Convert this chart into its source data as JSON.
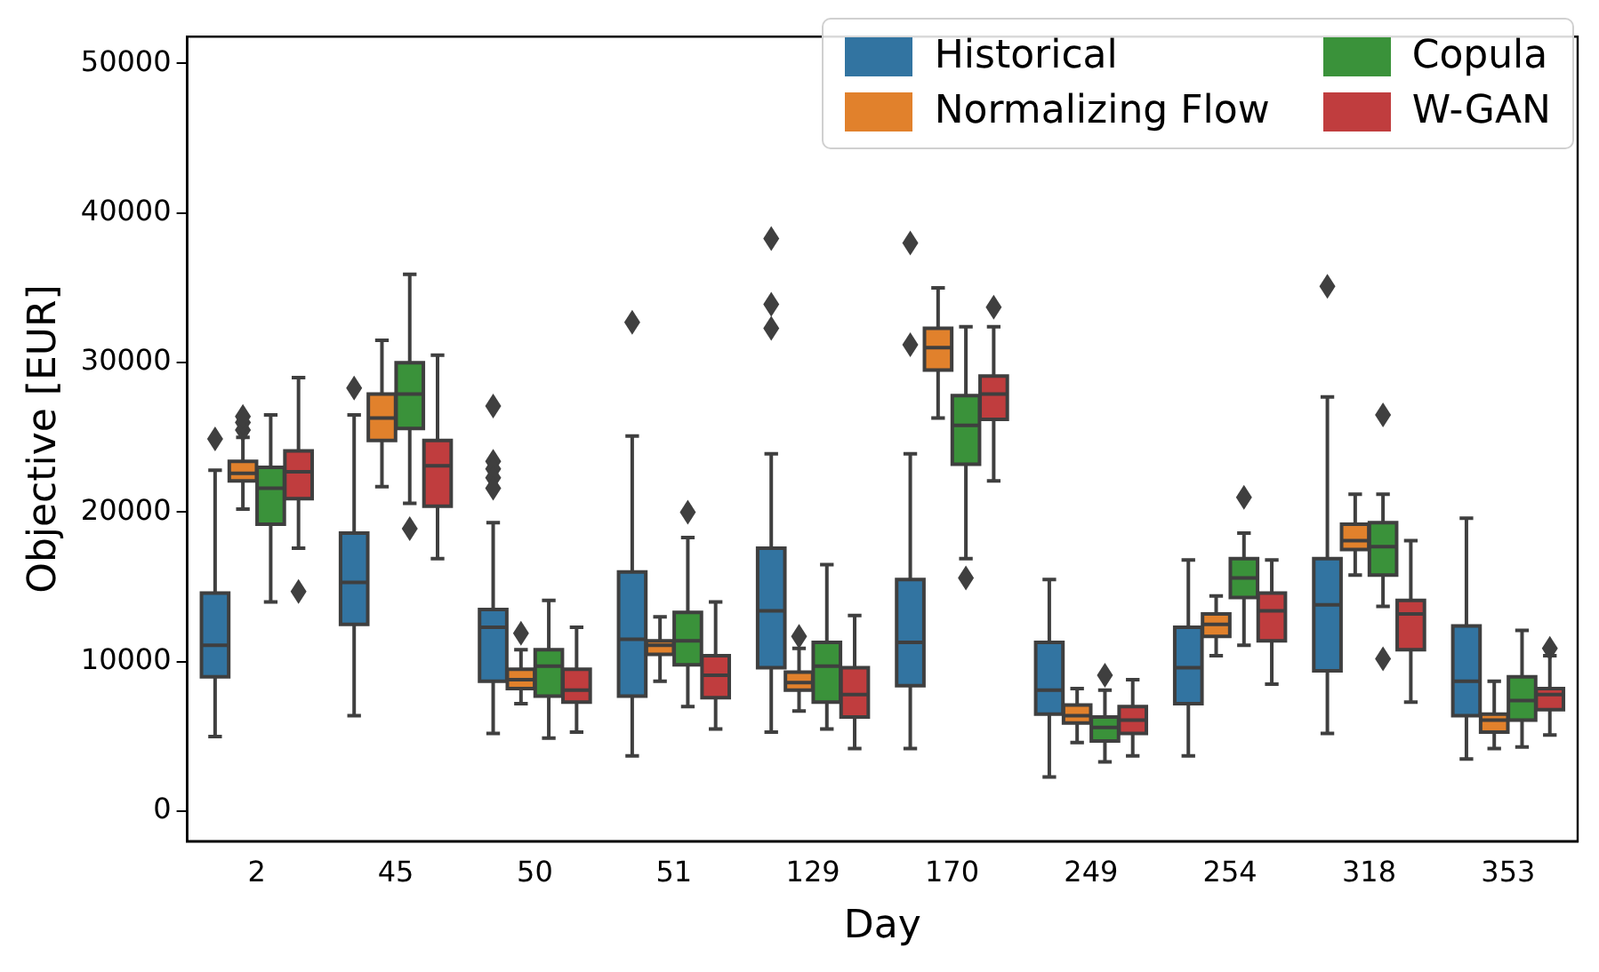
{
  "chart_data": {
    "type": "box",
    "xlabel": "Day",
    "ylabel": "Objective [EUR]",
    "categories": [
      "2",
      "45",
      "50",
      "51",
      "129",
      "170",
      "249",
      "254",
      "318",
      "353"
    ],
    "ylim": [
      -2000,
      51800
    ],
    "yticks": [
      0,
      10000,
      20000,
      30000,
      40000,
      50000
    ],
    "grid": false,
    "legend": "top right",
    "series": [
      {
        "name": "Historical",
        "color": "#3274a1",
        "boxes": [
          {
            "low": 5000,
            "q1": 9000,
            "median": 11100,
            "q3": 14600,
            "high": 22800,
            "outliers": [
              24900
            ]
          },
          {
            "low": 6400,
            "q1": 12500,
            "median": 15300,
            "q3": 18600,
            "high": 26500,
            "outliers": [
              28300
            ]
          },
          {
            "low": 5200,
            "q1": 8700,
            "median": 12300,
            "q3": 13500,
            "high": 19300,
            "outliers": [
              27100,
              23400,
              22900,
              22300,
              21600
            ]
          },
          {
            "low": 3700,
            "q1": 7700,
            "median": 11500,
            "q3": 16000,
            "high": 25100,
            "outliers": [
              32700
            ]
          },
          {
            "low": 5300,
            "q1": 9600,
            "median": 13400,
            "q3": 17600,
            "high": 23900,
            "outliers": [
              38300,
              33900,
              32300
            ]
          },
          {
            "low": 4200,
            "q1": 8400,
            "median": 11300,
            "q3": 15500,
            "high": 23900,
            "outliers": [
              38000,
              31200
            ]
          },
          {
            "low": 2300,
            "q1": 6500,
            "median": 8100,
            "q3": 11300,
            "high": 15500
          },
          {
            "low": 3700,
            "q1": 7200,
            "median": 9600,
            "q3": 12300,
            "high": 16800
          },
          {
            "low": 5200,
            "q1": 9400,
            "median": 13800,
            "q3": 16900,
            "high": 27700,
            "outliers": [
              35100
            ]
          },
          {
            "low": 3500,
            "q1": 6400,
            "median": 8700,
            "q3": 12400,
            "high": 19600
          }
        ]
      },
      {
        "name": "Normalizing Flow",
        "color": "#e1812c",
        "boxes": [
          {
            "low": 20200,
            "q1": 22100,
            "median": 22600,
            "q3": 23400,
            "high": 25000,
            "outliers": [
              25500,
              26000,
              26400
            ]
          },
          {
            "low": 21700,
            "q1": 24800,
            "median": 26300,
            "q3": 27900,
            "high": 31500
          },
          {
            "low": 7200,
            "q1": 8200,
            "median": 8800,
            "q3": 9500,
            "high": 10800,
            "outliers": [
              11900
            ]
          },
          {
            "low": 8700,
            "q1": 10500,
            "median": 11100,
            "q3": 11400,
            "high": 13000
          },
          {
            "low": 6700,
            "q1": 8100,
            "median": 8600,
            "q3": 9300,
            "high": 10900,
            "outliers": [
              11700
            ]
          },
          {
            "low": 26300,
            "q1": 29500,
            "median": 31000,
            "q3": 32300,
            "high": 35000
          },
          {
            "low": 4600,
            "q1": 5900,
            "median": 6400,
            "q3": 7100,
            "high": 8200
          },
          {
            "low": 10400,
            "q1": 11700,
            "median": 12500,
            "q3": 13200,
            "high": 14400
          },
          {
            "low": 15800,
            "q1": 17500,
            "median": 18100,
            "q3": 19200,
            "high": 21200
          },
          {
            "low": 4200,
            "q1": 5300,
            "median": 6100,
            "q3": 6500,
            "high": 8700
          }
        ]
      },
      {
        "name": "Copula",
        "color": "#3a923a",
        "boxes": [
          {
            "low": 14000,
            "q1": 19200,
            "median": 21600,
            "q3": 23000,
            "high": 26500
          },
          {
            "low": 20600,
            "q1": 25600,
            "median": 27900,
            "q3": 30000,
            "high": 35900,
            "outliers": [
              18900
            ]
          },
          {
            "low": 4900,
            "q1": 7700,
            "median": 9700,
            "q3": 10800,
            "high": 14100
          },
          {
            "low": 7000,
            "q1": 9800,
            "median": 11400,
            "q3": 13300,
            "high": 18300,
            "outliers": [
              20000
            ]
          },
          {
            "low": 5500,
            "q1": 7300,
            "median": 9700,
            "q3": 11300,
            "high": 16500
          },
          {
            "low": 16900,
            "q1": 23200,
            "median": 25800,
            "q3": 27800,
            "high": 32400,
            "outliers": [
              15600
            ]
          },
          {
            "low": 3300,
            "q1": 4700,
            "median": 5600,
            "q3": 6300,
            "high": 8100,
            "outliers": [
              9100
            ]
          },
          {
            "low": 11100,
            "q1": 14300,
            "median": 15600,
            "q3": 16900,
            "high": 18600,
            "outliers": [
              21000
            ]
          },
          {
            "low": 13700,
            "q1": 15800,
            "median": 17700,
            "q3": 19300,
            "high": 21200,
            "outliers": [
              26500,
              10200
            ]
          },
          {
            "low": 4300,
            "q1": 6100,
            "median": 7400,
            "q3": 9000,
            "high": 12100
          }
        ]
      },
      {
        "name": "W-GAN",
        "color": "#c03d3e",
        "boxes": [
          {
            "low": 17600,
            "q1": 20900,
            "median": 22700,
            "q3": 24100,
            "high": 29000,
            "outliers": [
              14700
            ]
          },
          {
            "low": 16900,
            "q1": 20400,
            "median": 23100,
            "q3": 24800,
            "high": 30500
          },
          {
            "low": 5300,
            "q1": 7300,
            "median": 8100,
            "q3": 9500,
            "high": 12300
          },
          {
            "low": 5500,
            "q1": 7600,
            "median": 9100,
            "q3": 10400,
            "high": 14000
          },
          {
            "low": 4200,
            "q1": 6300,
            "median": 7800,
            "q3": 9600,
            "high": 13100
          },
          {
            "low": 22100,
            "q1": 26200,
            "median": 27900,
            "q3": 29100,
            "high": 32400,
            "outliers": [
              33700
            ]
          },
          {
            "low": 3700,
            "q1": 5200,
            "median": 6100,
            "q3": 7000,
            "high": 8800
          },
          {
            "low": 8500,
            "q1": 11400,
            "median": 13400,
            "q3": 14600,
            "high": 16800
          },
          {
            "low": 7300,
            "q1": 10800,
            "median": 13200,
            "q3": 14100,
            "high": 18100
          },
          {
            "low": 5100,
            "q1": 6800,
            "median": 7800,
            "q3": 8200,
            "high": 10400,
            "outliers": [
              10900
            ]
          }
        ]
      }
    ]
  }
}
